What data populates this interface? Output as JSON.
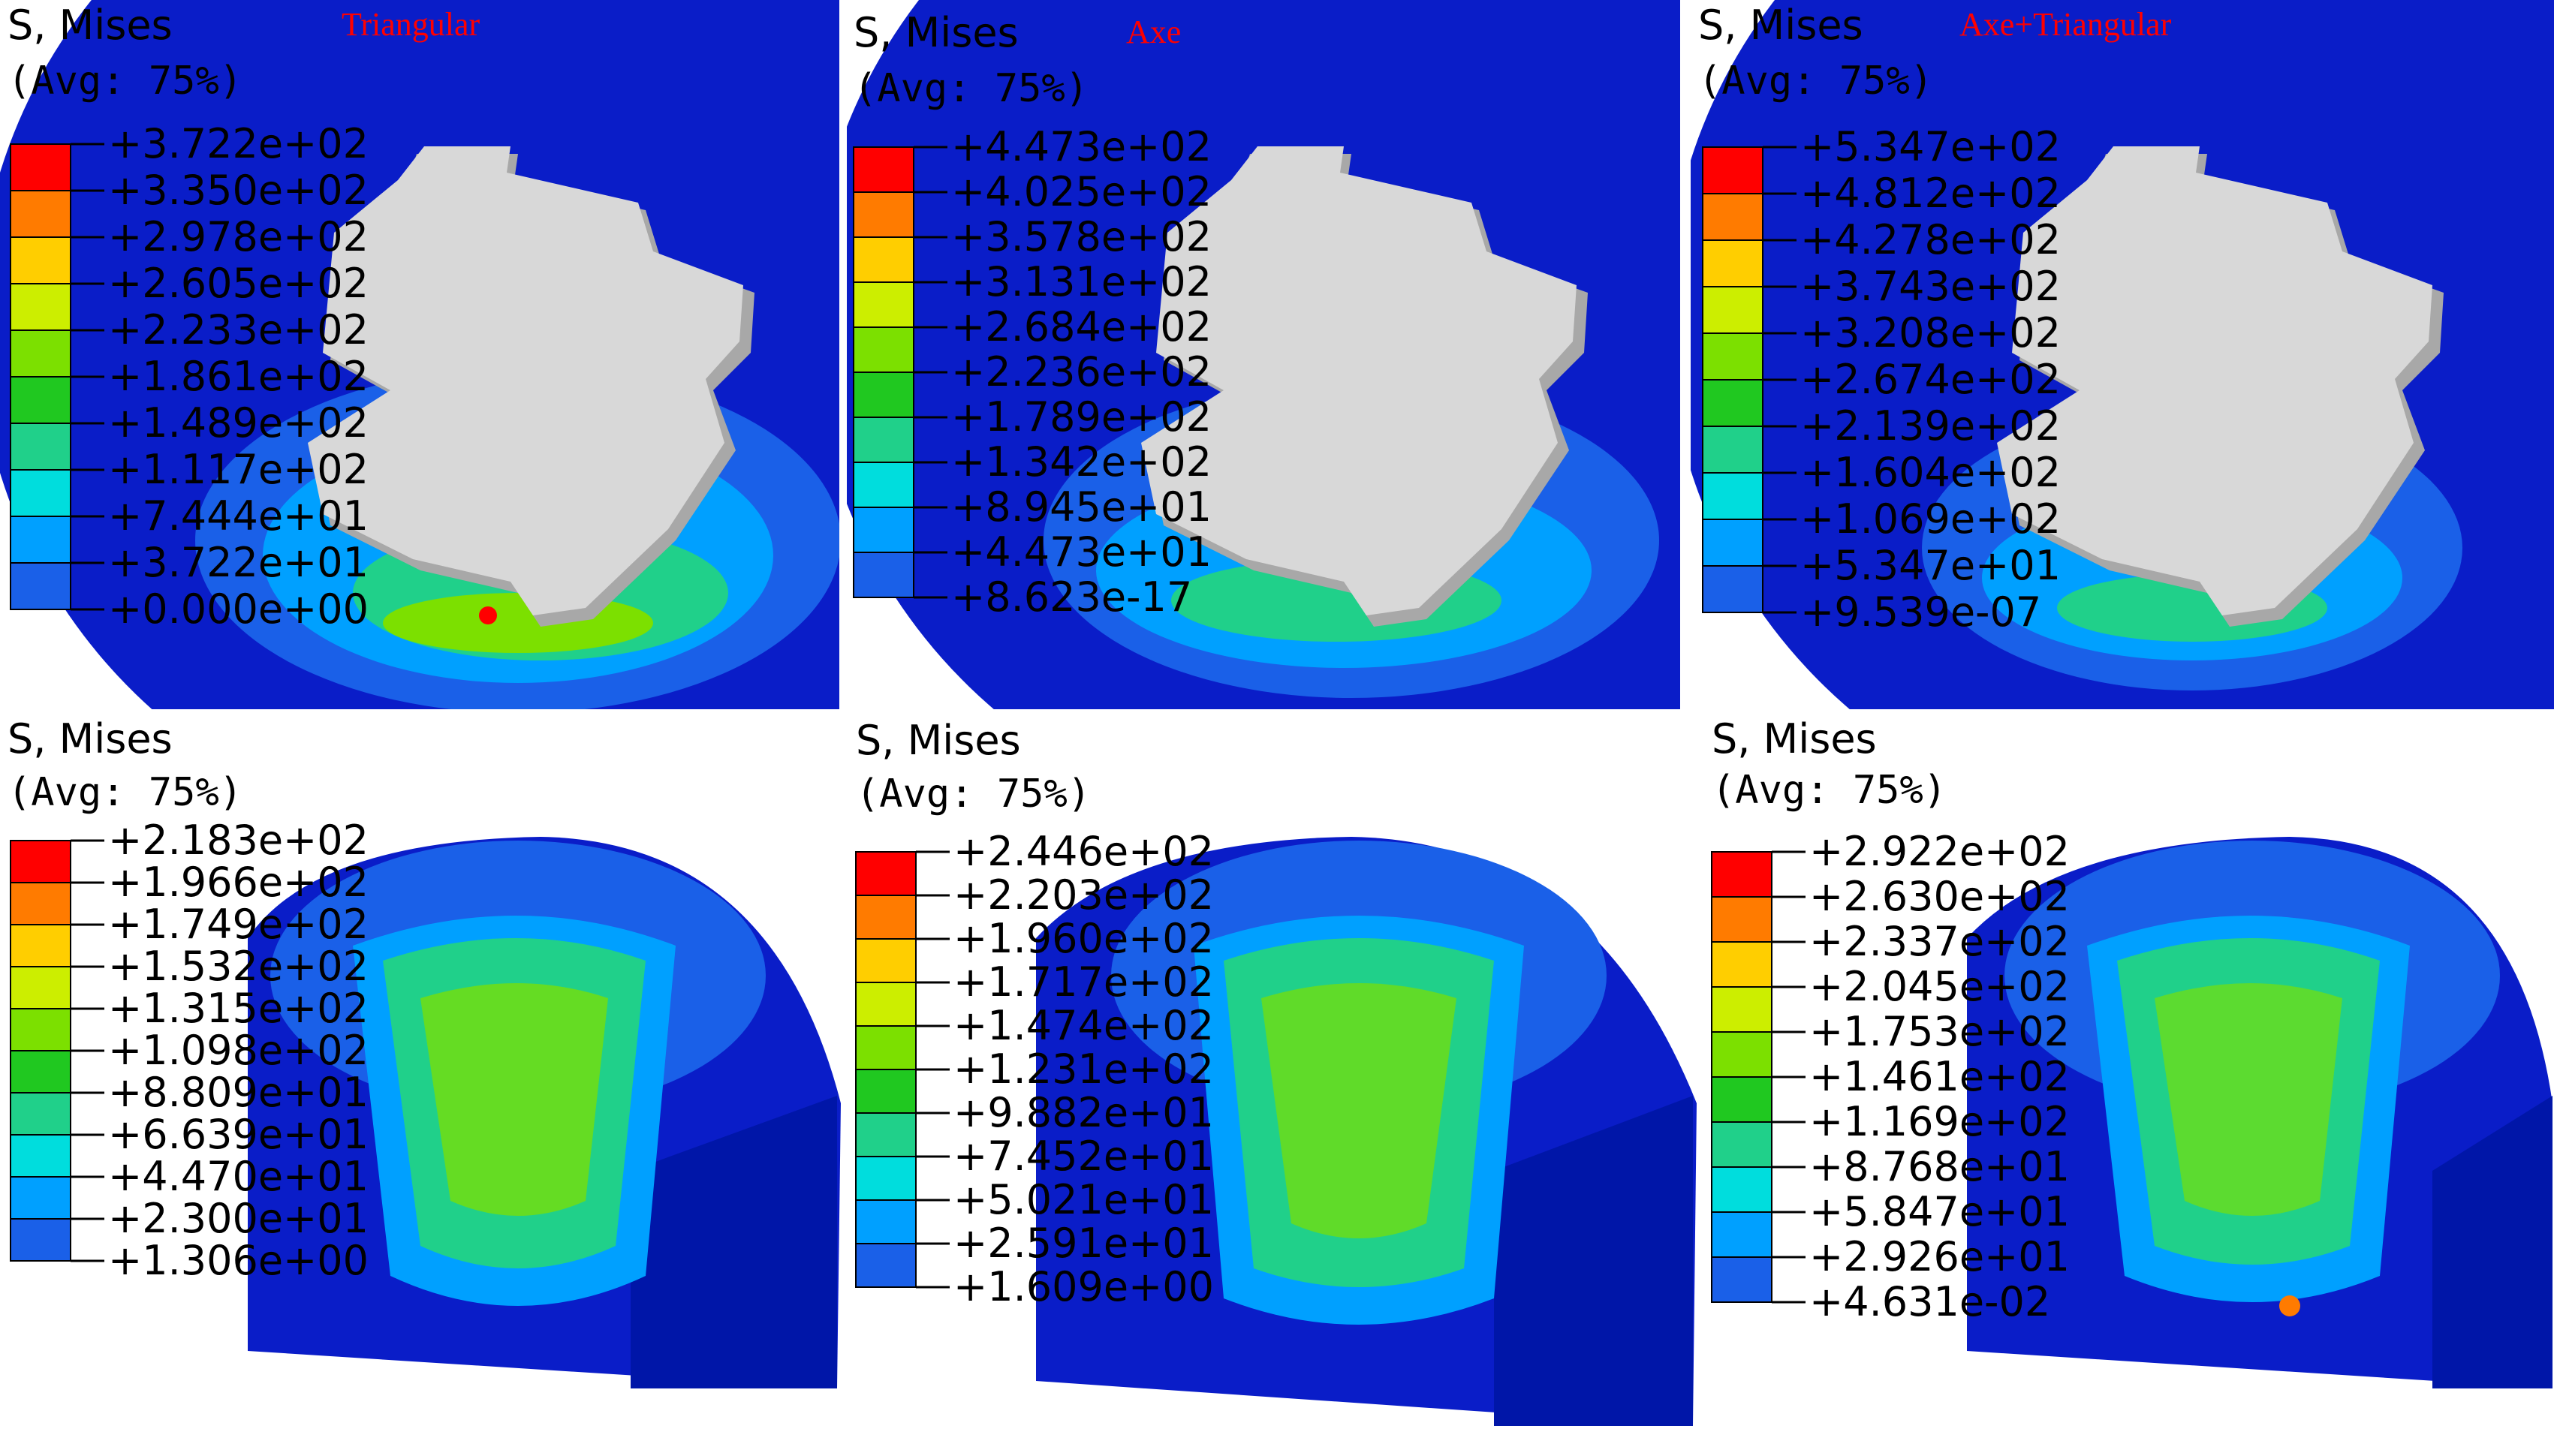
{
  "colorbar": [
    "#FF0000",
    "#FF7B00",
    "#FFCE00",
    "#CCEE00",
    "#7CE000",
    "#20C820",
    "#20D08A",
    "#00DDDD",
    "#00A0FF",
    "#1A60E8",
    "#0000DD"
  ],
  "colors": {
    "model_blue": "#0A1DC8",
    "tool_grey": "#D8D8D8",
    "tool_shadow": "#A8A8A8",
    "title_red": "#FF0000"
  },
  "panels": [
    {
      "id": "top-left",
      "header1": "S, Mises",
      "header2": "(Avg: 75%)",
      "title": "Triangular",
      "values": [
        "+3.722e+02",
        "+3.350e+02",
        "+2.978e+02",
        "+2.605e+02",
        "+2.233e+02",
        "+1.861e+02",
        "+1.489e+02",
        "+1.117e+02",
        "+7.444e+01",
        "+3.722e+01",
        "+0.000e+00"
      ]
    },
    {
      "id": "top-middle",
      "header1": "S, Mises",
      "header2": "(Avg: 75%)",
      "title": "Axe",
      "values": [
        "+4.473e+02",
        "+4.025e+02",
        "+3.578e+02",
        "+3.131e+02",
        "+2.684e+02",
        "+2.236e+02",
        "+1.789e+02",
        "+1.342e+02",
        "+8.945e+01",
        "+4.473e+01",
        "+8.623e-17"
      ]
    },
    {
      "id": "top-right",
      "header1": "S, Mises",
      "header2": "(Avg: 75%)",
      "title": "Axe+Triangular",
      "values": [
        "+5.347e+02",
        "+4.812e+02",
        "+4.278e+02",
        "+3.743e+02",
        "+3.208e+02",
        "+2.674e+02",
        "+2.139e+02",
        "+1.604e+02",
        "+1.069e+02",
        "+5.347e+01",
        "+9.539e-07"
      ]
    },
    {
      "id": "bottom-left",
      "header1": "S, Mises",
      "header2": "(Avg: 75%)",
      "title": "",
      "values": [
        "+2.183e+02",
        "+1.966e+02",
        "+1.749e+02",
        "+1.532e+02",
        "+1.315e+02",
        "+1.098e+02",
        "+8.809e+01",
        "+6.639e+01",
        "+4.470e+01",
        "+2.300e+01",
        "+1.306e+00"
      ]
    },
    {
      "id": "bottom-middle",
      "header1": "S, Mises",
      "header2": "(Avg: 75%)",
      "title": "",
      "values": [
        "+2.446e+02",
        "+2.203e+02",
        "+1.960e+02",
        "+1.717e+02",
        "+1.474e+02",
        "+1.231e+02",
        "+9.882e+01",
        "+7.452e+01",
        "+5.021e+01",
        "+2.591e+01",
        "+1.609e+00"
      ]
    },
    {
      "id": "bottom-right",
      "header1": "S, Mises",
      "header2": "(Avg: 75%)",
      "title": "",
      "values": [
        "+2.922e+02",
        "+2.630e+02",
        "+2.337e+02",
        "+2.045e+02",
        "+1.753e+02",
        "+1.461e+02",
        "+1.169e+02",
        "+8.768e+01",
        "+5.847e+01",
        "+2.926e+01",
        "+4.631e-02"
      ]
    }
  ]
}
